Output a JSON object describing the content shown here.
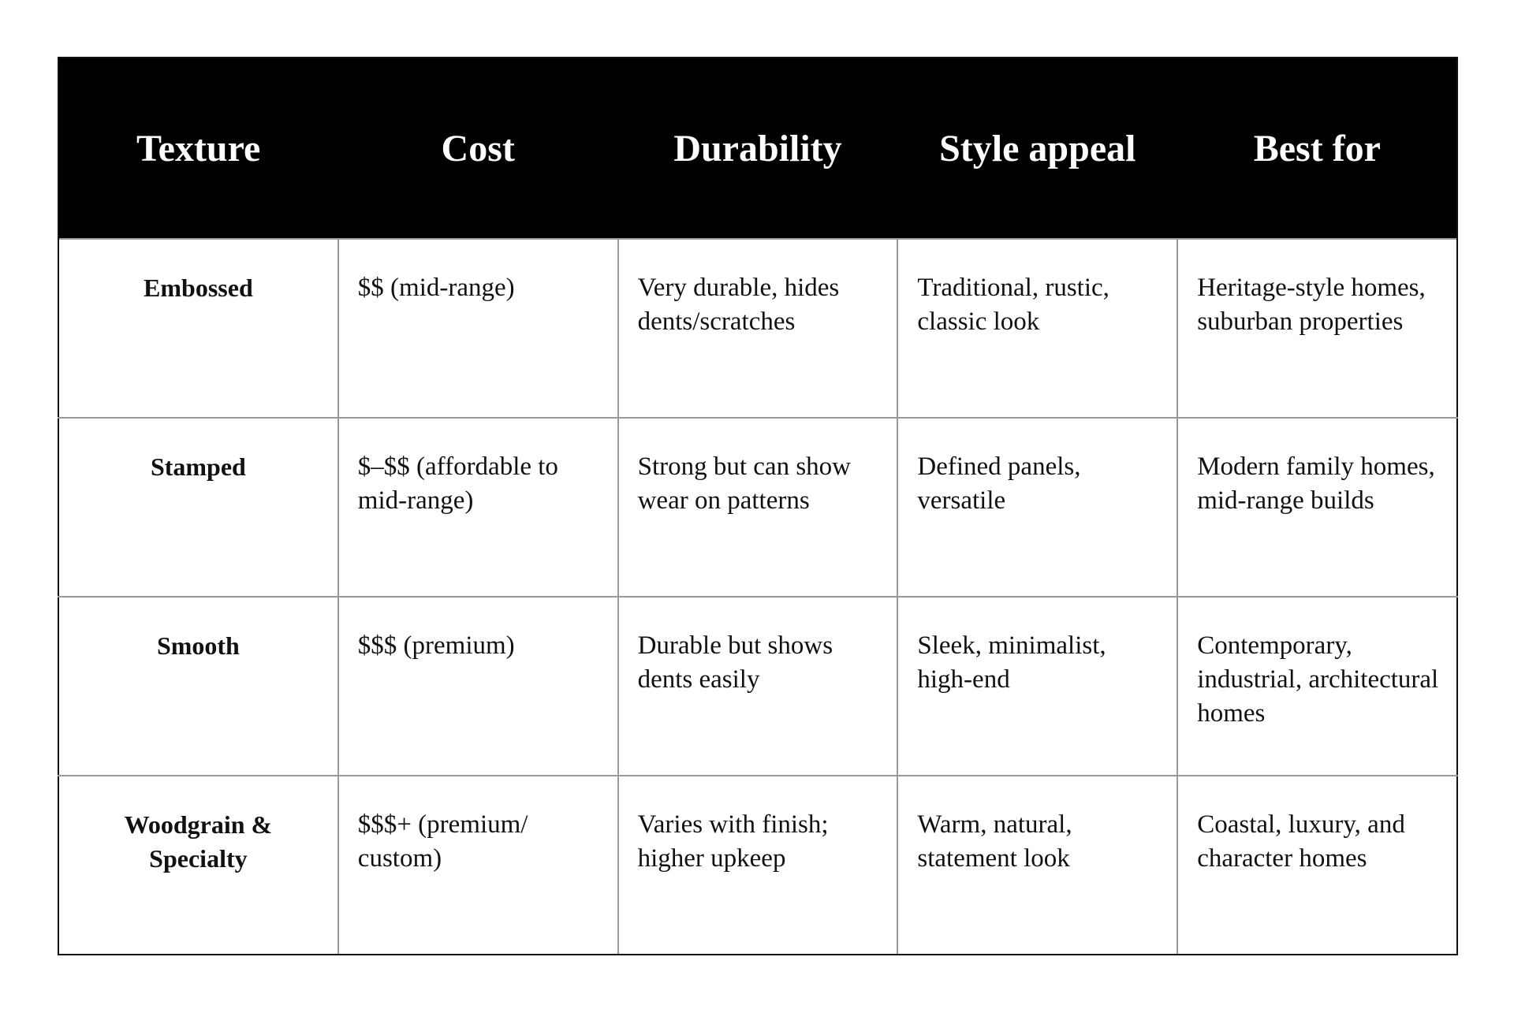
{
  "table": {
    "header": [
      "Texture",
      "Cost",
      "Durability",
      "Style appeal",
      "Best for"
    ],
    "rows": [
      [
        "Embossed",
        "$$ (mid-range)",
        "Very durable, hides dents/scratches",
        "Traditional, rustic, classic look",
        "Heritage-style homes, suburban properties"
      ],
      [
        "Stamped",
        "$–$$ (affordable to mid-range)",
        "Strong but can show wear on patterns",
        "Defined panels, versatile",
        "Modern family homes, mid-range builds"
      ],
      [
        "Smooth",
        "$$$ (premium)",
        "Durable but shows dents easily",
        "Sleek, minimalist, high-end",
        "Contemporary, industrial, architectural homes"
      ],
      [
        "Woodgrain & Specialty",
        "$$$+ (premium/ custom)",
        "Varies with finish; higher upkeep",
        "Warm, natural, statement look",
        "Coastal, luxury, and character homes"
      ]
    ]
  }
}
